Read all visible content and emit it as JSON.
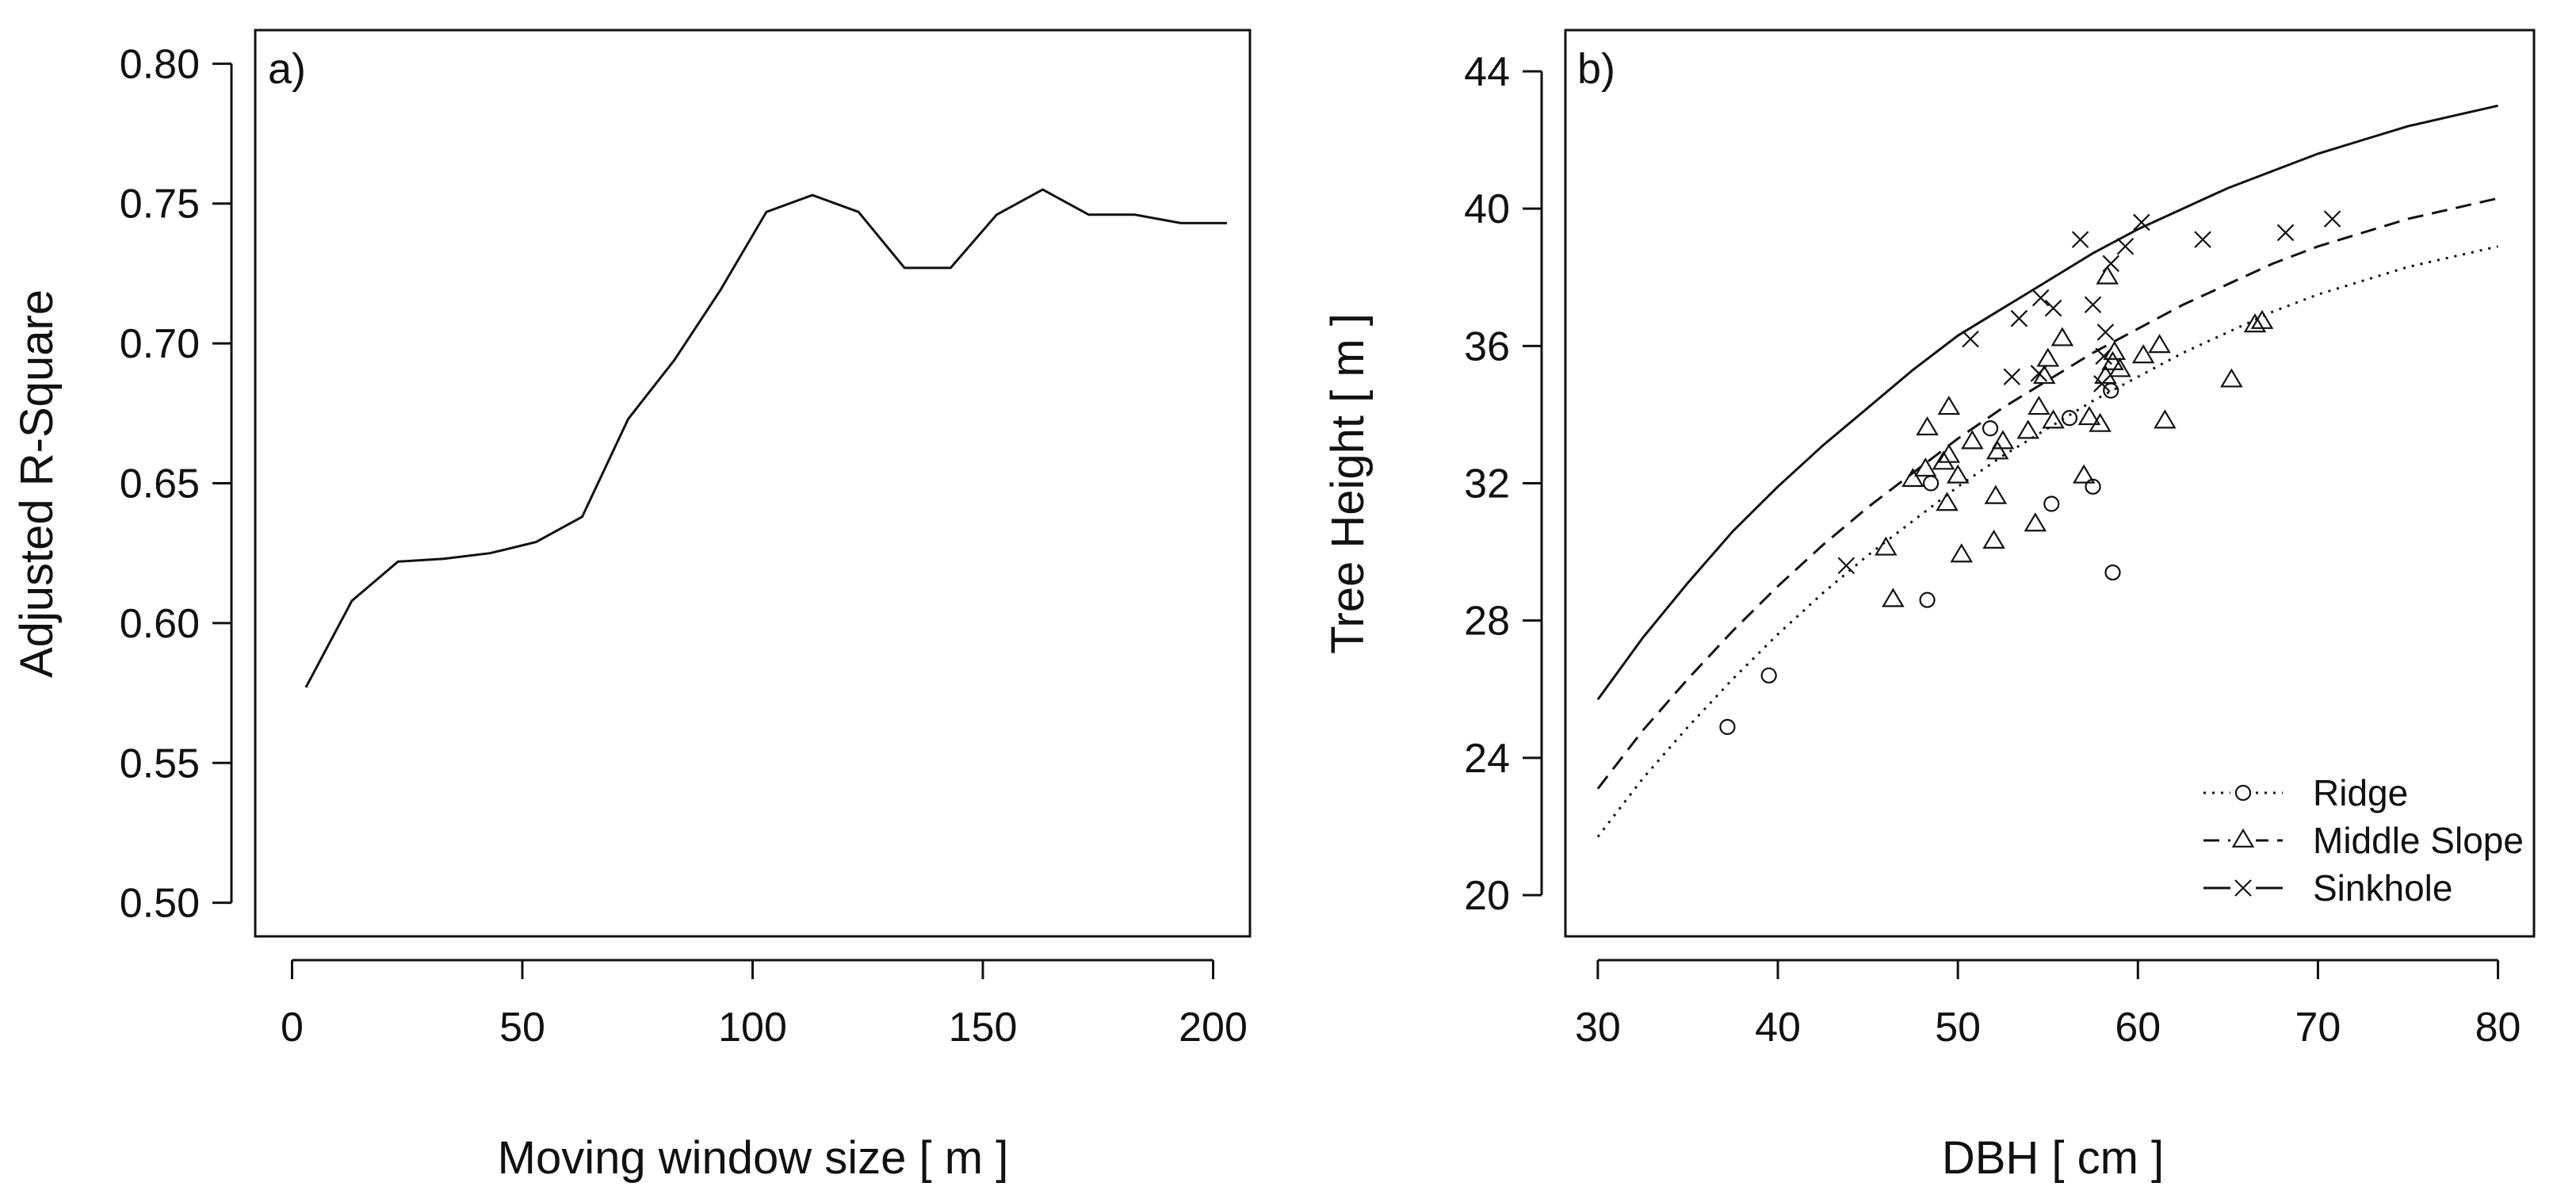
{
  "chart_data": [
    {
      "type": "line",
      "panel_label": "a)",
      "xlabel": "Moving window size [ m ]",
      "ylabel": "Adjusted R-Square",
      "xlim": [
        -8,
        208
      ],
      "ylim": [
        0.488,
        0.812
      ],
      "xticks": [
        0,
        50,
        100,
        150,
        200
      ],
      "yticks": [
        0.5,
        0.55,
        0.6,
        0.65,
        0.7,
        0.75,
        0.8
      ],
      "ytick_labels": [
        "0.50",
        "0.55",
        "0.60",
        "0.65",
        "0.70",
        "0.75",
        "0.80"
      ],
      "grid": false,
      "series": [
        {
          "x": [
            3,
            13,
            23,
            33,
            43,
            53,
            63,
            73,
            83,
            93,
            103,
            113,
            123,
            133,
            143,
            153,
            163,
            173,
            183,
            193,
            203
          ],
          "y": [
            0.577,
            0.608,
            0.622,
            0.623,
            0.625,
            0.629,
            0.638,
            0.673,
            0.694,
            0.719,
            0.747,
            0.753,
            0.747,
            0.727,
            0.727,
            0.746,
            0.755,
            0.746,
            0.746,
            0.743,
            0.743
          ]
        }
      ]
    },
    {
      "type": "scatter",
      "panel_label": "b)",
      "xlabel": "DBH [ cm ]",
      "ylabel": "Tree Height [ m ]",
      "xlim": [
        28.2,
        82
      ],
      "ylim": [
        18.8,
        45.2
      ],
      "xticks": [
        30,
        40,
        50,
        60,
        70,
        80
      ],
      "yticks": [
        20,
        24,
        28,
        32,
        36,
        40,
        44
      ],
      "grid": false,
      "legend_position": "bottom-right",
      "series": [
        {
          "name": "Ridge",
          "marker": "circle",
          "linestyle": "dotted",
          "curve": {
            "x": [
              30,
              32.5,
              35,
              37.5,
              40,
              42.5,
              45,
              47.5,
              50,
              52.5,
              55,
              57.5,
              60,
              62.5,
              65,
              67.5,
              70,
              72.5,
              75,
              77.5,
              80
            ],
            "y": [
              21.7,
              23.4,
              24.9,
              26.3,
              27.6,
              28.8,
              29.9,
              30.9,
              31.9,
              32.8,
              33.6,
              34.4,
              35.1,
              35.8,
              36.4,
              37.0,
              37.5,
              37.9,
              38.3,
              38.6,
              38.9
            ]
          },
          "points": [
            [
              37.2,
              24.9
            ],
            [
              39.5,
              26.4
            ],
            [
              48.3,
              28.6
            ],
            [
              48.5,
              32.0
            ],
            [
              51.8,
              33.6
            ],
            [
              55.2,
              31.4
            ],
            [
              56.2,
              33.9
            ],
            [
              57.5,
              31.9
            ],
            [
              58.5,
              34.7
            ],
            [
              58.6,
              29.4
            ]
          ]
        },
        {
          "name": "Middle Slope",
          "marker": "triangle",
          "linestyle": "dashed",
          "curve": {
            "x": [
              30,
              32.5,
              35,
              37.5,
              40,
              42.5,
              45,
              47.5,
              50,
              52.5,
              55,
              57.5,
              60,
              62.5,
              65,
              67.5,
              70,
              72.5,
              75,
              77.5,
              80
            ],
            "y": [
              23.1,
              24.8,
              26.3,
              27.7,
              29.0,
              30.2,
              31.3,
              32.3,
              33.3,
              34.2,
              35.0,
              35.8,
              36.5,
              37.2,
              37.8,
              38.4,
              38.9,
              39.3,
              39.7,
              40.0,
              40.3
            ]
          },
          "points": [
            [
              46.0,
              30.1
            ],
            [
              46.4,
              28.6
            ],
            [
              47.5,
              32.1
            ],
            [
              48.2,
              32.4
            ],
            [
              48.3,
              33.6
            ],
            [
              49.2,
              32.6
            ],
            [
              49.4,
              31.4
            ],
            [
              49.5,
              32.8
            ],
            [
              49.5,
              34.2
            ],
            [
              50.0,
              32.2
            ],
            [
              50.2,
              29.9
            ],
            [
              50.8,
              33.2
            ],
            [
              52.0,
              30.3
            ],
            [
              52.1,
              31.6
            ],
            [
              52.2,
              32.9
            ],
            [
              52.5,
              33.2
            ],
            [
              53.9,
              33.5
            ],
            [
              54.3,
              30.8
            ],
            [
              54.5,
              34.2
            ],
            [
              54.8,
              35.1
            ],
            [
              55.0,
              35.6
            ],
            [
              55.3,
              33.8
            ],
            [
              55.8,
              36.2
            ],
            [
              57.0,
              32.2
            ],
            [
              57.3,
              33.9
            ],
            [
              57.9,
              33.7
            ],
            [
              58.2,
              35.1
            ],
            [
              58.3,
              38.0
            ],
            [
              58.6,
              35.5
            ],
            [
              58.7,
              35.8
            ],
            [
              59.0,
              35.3
            ],
            [
              60.3,
              35.7
            ],
            [
              61.2,
              36.0
            ],
            [
              61.5,
              33.8
            ],
            [
              65.2,
              35.0
            ],
            [
              66.5,
              36.6
            ],
            [
              66.9,
              36.7
            ]
          ]
        },
        {
          "name": "Sinkhole",
          "marker": "cross",
          "linestyle": "solid",
          "curve": {
            "x": [
              30,
              32.5,
              35,
              37.5,
              40,
              42.5,
              45,
              47.5,
              50,
              52.5,
              55,
              57.5,
              60,
              62.5,
              65,
              67.5,
              70,
              72.5,
              75,
              77.5,
              80
            ],
            "y": [
              25.7,
              27.5,
              29.1,
              30.6,
              31.9,
              33.1,
              34.2,
              35.3,
              36.3,
              37.1,
              37.9,
              38.7,
              39.4,
              40.0,
              40.6,
              41.1,
              41.6,
              42.0,
              42.4,
              42.7,
              43.0
            ]
          },
          "points": [
            [
              43.8,
              29.6
            ],
            [
              50.7,
              36.2
            ],
            [
              53.0,
              35.1
            ],
            [
              53.4,
              36.8
            ],
            [
              54.5,
              35.2
            ],
            [
              54.6,
              37.4
            ],
            [
              55.3,
              37.1
            ],
            [
              56.8,
              39.1
            ],
            [
              57.5,
              37.2
            ],
            [
              58.0,
              34.9
            ],
            [
              58.1,
              35.7
            ],
            [
              58.2,
              36.4
            ],
            [
              58.5,
              38.4
            ],
            [
              59.3,
              38.9
            ],
            [
              60.2,
              39.6
            ],
            [
              63.6,
              39.1
            ],
            [
              68.2,
              39.3
            ],
            [
              70.8,
              39.7
            ]
          ]
        }
      ]
    }
  ]
}
